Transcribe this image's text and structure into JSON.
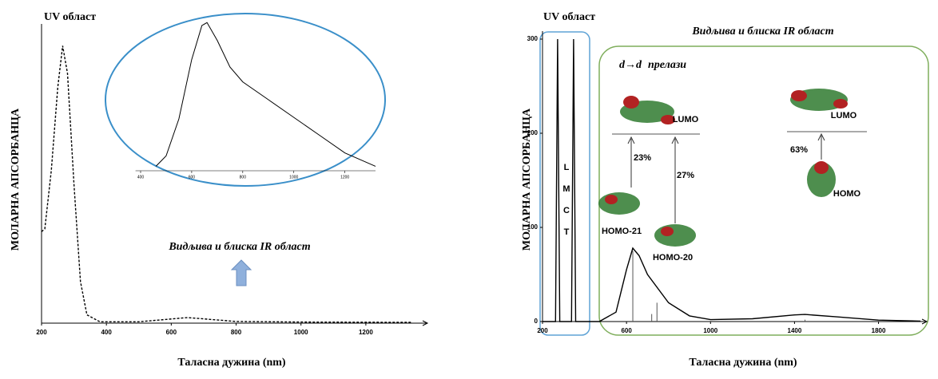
{
  "chart_data": [
    {
      "type": "line",
      "title": "UV област",
      "annotations": [
        "Видљива и блиска IR област"
      ],
      "x_label": "Таласна дужина (nm)",
      "y_label": "МОЛАРНА АПСОРБАНЦА",
      "xlim": [
        200,
        1390
      ],
      "xticks": [
        200,
        400,
        600,
        800,
        1000,
        1200
      ],
      "ylim": [
        0,
        1.05
      ],
      "x": [
        200,
        210,
        230,
        250,
        265,
        280,
        300,
        320,
        340,
        380,
        500,
        650,
        800,
        1000,
        1340
      ],
      "series": [
        {
          "color": "#000000",
          "line_style": "dashed",
          "values": [
            0.33,
            0.34,
            0.55,
            0.85,
            1.0,
            0.9,
            0.5,
            0.15,
            0.03,
            0.005,
            0.005,
            0.02,
            0.006,
            0.004,
            0.003
          ]
        }
      ]
    },
    {
      "type": "line",
      "xlim": [
        380,
        1320
      ],
      "xticks": [
        400,
        600,
        800,
        1000,
        1200
      ],
      "ylim": [
        0,
        1.05
      ],
      "x": [
        460,
        500,
        550,
        600,
        640,
        660,
        700,
        750,
        800,
        900,
        1000,
        1100,
        1200,
        1320
      ],
      "series": [
        {
          "color": "#000000",
          "line_style": "solid",
          "values": [
            0.03,
            0.1,
            0.35,
            0.75,
            0.98,
            1.0,
            0.88,
            0.7,
            0.6,
            0.48,
            0.36,
            0.24,
            0.12,
            0.03
          ]
        }
      ]
    },
    {
      "type": "line",
      "title": "UV област",
      "annotations": [
        "Видљива и блиска IR област",
        "L",
        "M",
        "C",
        "T",
        "d→d",
        "прелази",
        "LUMO",
        "23%",
        "27%",
        "HOMO-21",
        "HOMO-20",
        "LUMO",
        "63%",
        "HOMO"
      ],
      "x_label": "Таласна дужина (nm)",
      "y_label": "МОЛАРНА АПСОРБАНЦА",
      "xlim": [
        200,
        2030
      ],
      "xticks": [
        200,
        600,
        1000,
        1400,
        1800
      ],
      "ylim": [
        0,
        300
      ],
      "yticks": [
        0,
        100,
        200,
        300
      ],
      "x": [
        200,
        262,
        272,
        282,
        338,
        348,
        358,
        470,
        550,
        600,
        630,
        660,
        700,
        800,
        900,
        1000,
        1200,
        1400,
        1450,
        1600,
        1800,
        2000
      ],
      "series": [
        {
          "color": "#000000",
          "line_style": "solid",
          "values": [
            0,
            0,
            300,
            0,
            0,
            300,
            0,
            0,
            10,
            55,
            78,
            70,
            50,
            20,
            6,
            2,
            3,
            7,
            7.5,
            5,
            1.5,
            0.5
          ]
        }
      ],
      "sticks": {
        "x": [
          630,
          720,
          745,
          1450
        ],
        "values": [
          75,
          8,
          20,
          2
        ]
      }
    }
  ]
}
